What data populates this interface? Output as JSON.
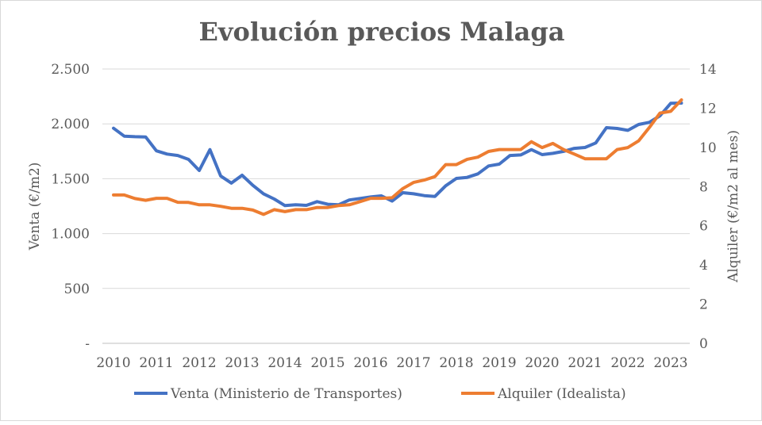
{
  "chart_data": {
    "type": "line",
    "title": "Evolución precios Malaga",
    "ylabel": "Venta (€/m2)",
    "y2label": "Alquiler (€/m2 al mes)",
    "xlabel": "",
    "x_tick_labels": [
      "2010",
      "2011",
      "2012",
      "2013",
      "2014",
      "2015",
      "2016",
      "2017",
      "2018",
      "2019",
      "2020",
      "2021",
      "2022",
      "2023"
    ],
    "x_period": "quarterly, 2010 Q1 – 2023 Q2",
    "ylim": [
      0,
      2500
    ],
    "y_ticks": [
      0,
      500,
      1000,
      1500,
      2000,
      2500
    ],
    "y_tick_labels": [
      "-",
      "500",
      "1.000",
      "1.500",
      "2.000",
      "2.500"
    ],
    "y2lim": [
      0,
      14
    ],
    "y2_ticks": [
      0,
      2,
      4,
      6,
      8,
      10,
      12,
      14
    ],
    "y2_tick_labels": [
      "0",
      "2",
      "4",
      "6",
      "8",
      "10",
      "12",
      "14"
    ],
    "grid": true,
    "legend_position": "bottom",
    "series": [
      {
        "name": "Venta (Ministerio de Transportes)",
        "axis": "left",
        "color": "#4472C4",
        "values": [
          1960,
          1888,
          1883,
          1881,
          1754,
          1725,
          1712,
          1676,
          1575,
          1765,
          1525,
          1460,
          1532,
          1440,
          1363,
          1315,
          1255,
          1262,
          1257,
          1291,
          1267,
          1262,
          1306,
          1320,
          1334,
          1344,
          1296,
          1373,
          1363,
          1346,
          1339,
          1436,
          1503,
          1512,
          1544,
          1616,
          1633,
          1712,
          1717,
          1765,
          1720,
          1731,
          1749,
          1777,
          1785,
          1826,
          1965,
          1958,
          1941,
          1994,
          2014,
          2074,
          2187,
          2189
        ]
      },
      {
        "name": "Alquiler (Idealista)",
        "axis": "right",
        "color": "#ED7D31",
        "values": [
          7.57,
          7.57,
          7.39,
          7.3,
          7.4,
          7.4,
          7.2,
          7.19,
          7.07,
          7.07,
          6.99,
          6.89,
          6.89,
          6.8,
          6.58,
          6.82,
          6.72,
          6.82,
          6.82,
          6.93,
          6.93,
          7.03,
          7.07,
          7.23,
          7.4,
          7.4,
          7.43,
          7.9,
          8.21,
          8.33,
          8.51,
          9.12,
          9.12,
          9.39,
          9.5,
          9.79,
          9.89,
          9.89,
          9.89,
          10.29,
          9.99,
          10.2,
          9.89,
          9.66,
          9.42,
          9.42,
          9.42,
          9.89,
          9.99,
          10.33,
          11.01,
          11.75,
          11.84,
          12.42
        ]
      }
    ]
  }
}
